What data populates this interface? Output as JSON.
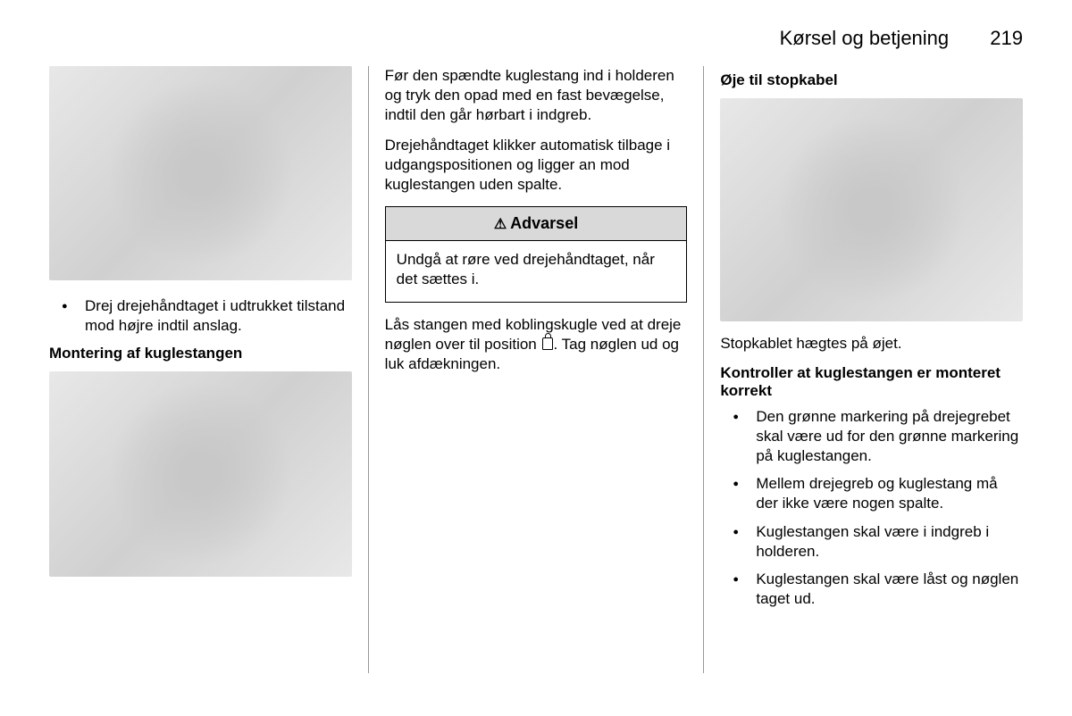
{
  "header": {
    "section_title": "Kørsel og betjening",
    "page_number": "219"
  },
  "col1": {
    "bullet1": "Drej drejehåndtaget i udtrukket tilstand mod højre indtil anslag.",
    "subheading": "Montering af kuglestangen"
  },
  "col2": {
    "para1": "Før den spændte kuglestang ind i holderen og tryk den opad med en fast bevægelse, indtil den går hørbart i indgreb.",
    "para2": "Drejehåndtaget klikker automatisk tilbage i udgangspositionen og ligger an mod kuglestangen uden spalte.",
    "warning_title": "Advarsel",
    "warning_body": "Undgå at røre ved drejehåndtaget, når det sættes i.",
    "para3_a": "Lås stangen med koblingskugle ved at dreje nøglen over til position ",
    "para3_b": ". Tag nøglen ud og luk afdækningen."
  },
  "col3": {
    "subheading1": "Øje til stopkabel",
    "para1": "Stopkablet hægtes på øjet.",
    "subheading2": "Kontroller at kuglestangen er monteret korrekt",
    "bullets": [
      "Den grønne markering på drejegrebet skal være ud for den grønne markering på kuglestangen.",
      "Mellem drejegreb og kuglestang må der ikke være nogen spalte.",
      "Kuglestangen skal være i indgreb i holderen.",
      "Kuglestangen skal være låst og nøglen taget ud."
    ]
  }
}
